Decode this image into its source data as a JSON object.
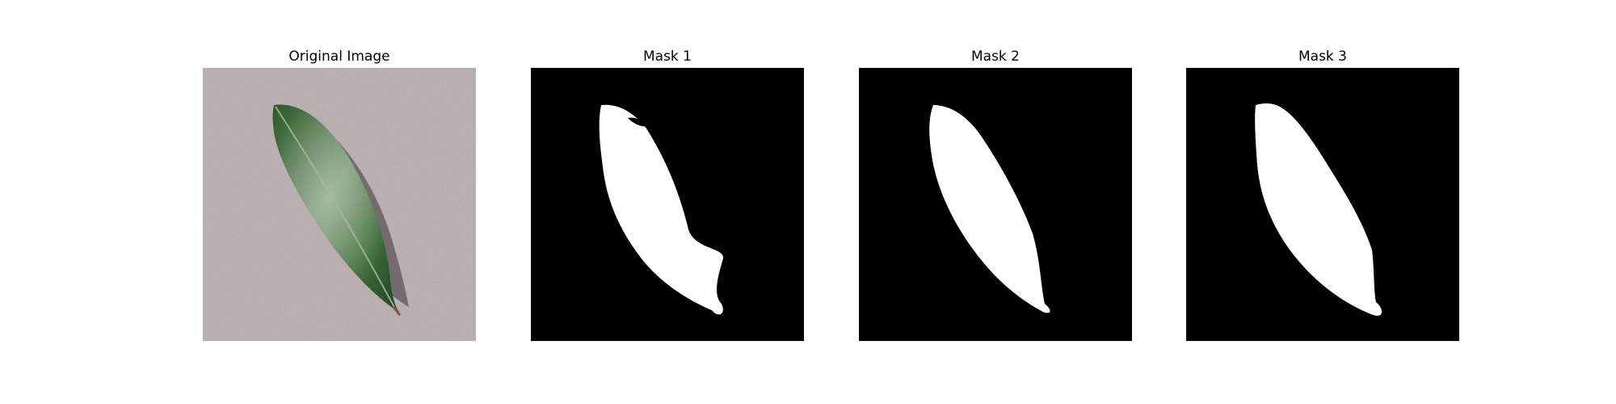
{
  "figure": {
    "panels": [
      {
        "title": "Original Image",
        "kind": "photo"
      },
      {
        "title": "Mask 1",
        "kind": "mask"
      },
      {
        "title": "Mask 2",
        "kind": "mask"
      },
      {
        "title": "Mask 3",
        "kind": "mask"
      }
    ]
  },
  "colors": {
    "background": "#ffffff",
    "paper": "#b9acaf",
    "leaf_dark": "#1f4a24",
    "leaf_light": "#6e8f68",
    "mask_background": "#000000",
    "mask_foreground": "#ffffff"
  }
}
